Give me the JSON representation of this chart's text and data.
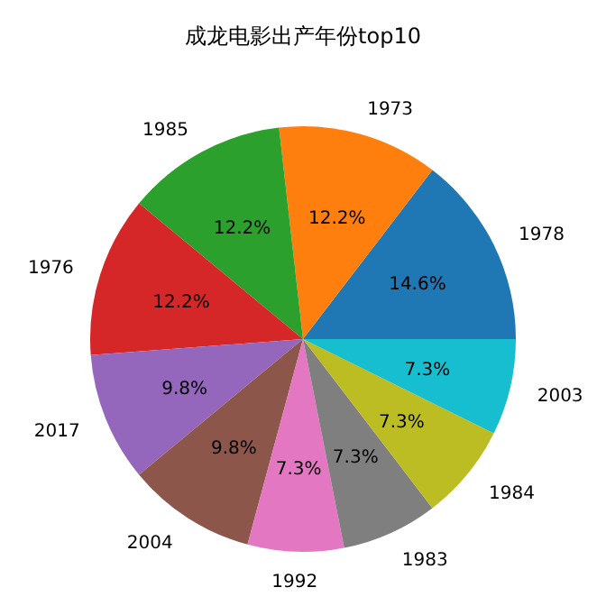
{
  "chart_data": {
    "type": "pie",
    "title": "成龙电影出产年份top10",
    "categories": [
      "1978",
      "1973",
      "1985",
      "1976",
      "2017",
      "2004",
      "1992",
      "1983",
      "1984",
      "2003"
    ],
    "values": [
      14.6,
      12.2,
      12.2,
      12.2,
      9.8,
      9.8,
      7.3,
      7.3,
      7.3,
      7.3
    ],
    "value_labels": [
      "14.6%",
      "12.2%",
      "12.2%",
      "12.2%",
      "9.8%",
      "9.8%",
      "7.3%",
      "7.3%",
      "7.3%",
      "7.3%"
    ],
    "colors": [
      "#1f77b4",
      "#ff7f0e",
      "#2ca02c",
      "#d62728",
      "#9467bd",
      "#8c564b",
      "#e377c2",
      "#7f7f7f",
      "#bcbd22",
      "#17becf"
    ]
  }
}
